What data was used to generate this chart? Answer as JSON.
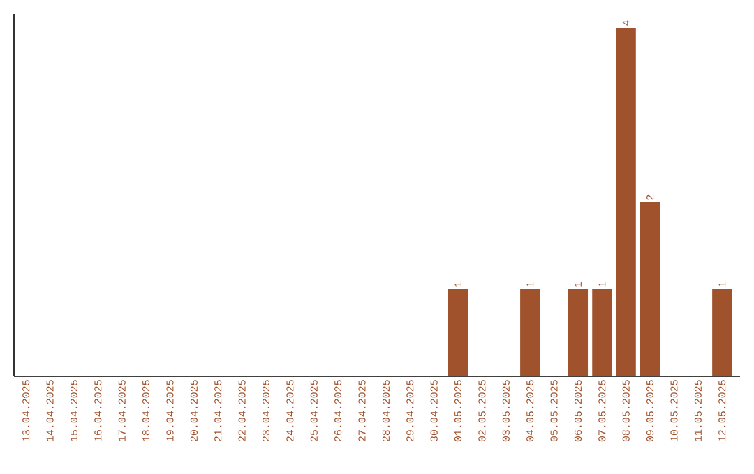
{
  "chart_data": {
    "type": "bar",
    "categories": [
      "13.04.2025",
      "14.04.2025",
      "15.04.2025",
      "16.04.2025",
      "17.04.2025",
      "18.04.2025",
      "19.04.2025",
      "20.04.2025",
      "21.04.2025",
      "22.04.2025",
      "23.04.2025",
      "24.04.2025",
      "25.04.2025",
      "26.04.2025",
      "27.04.2025",
      "28.04.2025",
      "29.04.2025",
      "30.04.2025",
      "01.05.2025",
      "02.05.2025",
      "03.05.2025",
      "04.05.2025",
      "05.05.2025",
      "06.05.2025",
      "07.05.2025",
      "08.05.2025",
      "09.05.2025",
      "10.05.2025",
      "11.05.2025",
      "12.05.2025"
    ],
    "values": [
      null,
      null,
      null,
      null,
      null,
      null,
      null,
      null,
      null,
      null,
      null,
      null,
      null,
      null,
      null,
      null,
      null,
      null,
      1,
      null,
      null,
      1,
      null,
      1,
      1,
      4,
      2,
      null,
      null,
      1
    ],
    "value_labels": [
      null,
      null,
      null,
      null,
      null,
      null,
      null,
      null,
      null,
      null,
      null,
      null,
      null,
      null,
      null,
      null,
      null,
      null,
      "1",
      null,
      null,
      "1",
      null,
      "1",
      "1",
      "4",
      "2",
      null,
      null,
      "1"
    ],
    "color": "#a0522d",
    "grid": false
  }
}
